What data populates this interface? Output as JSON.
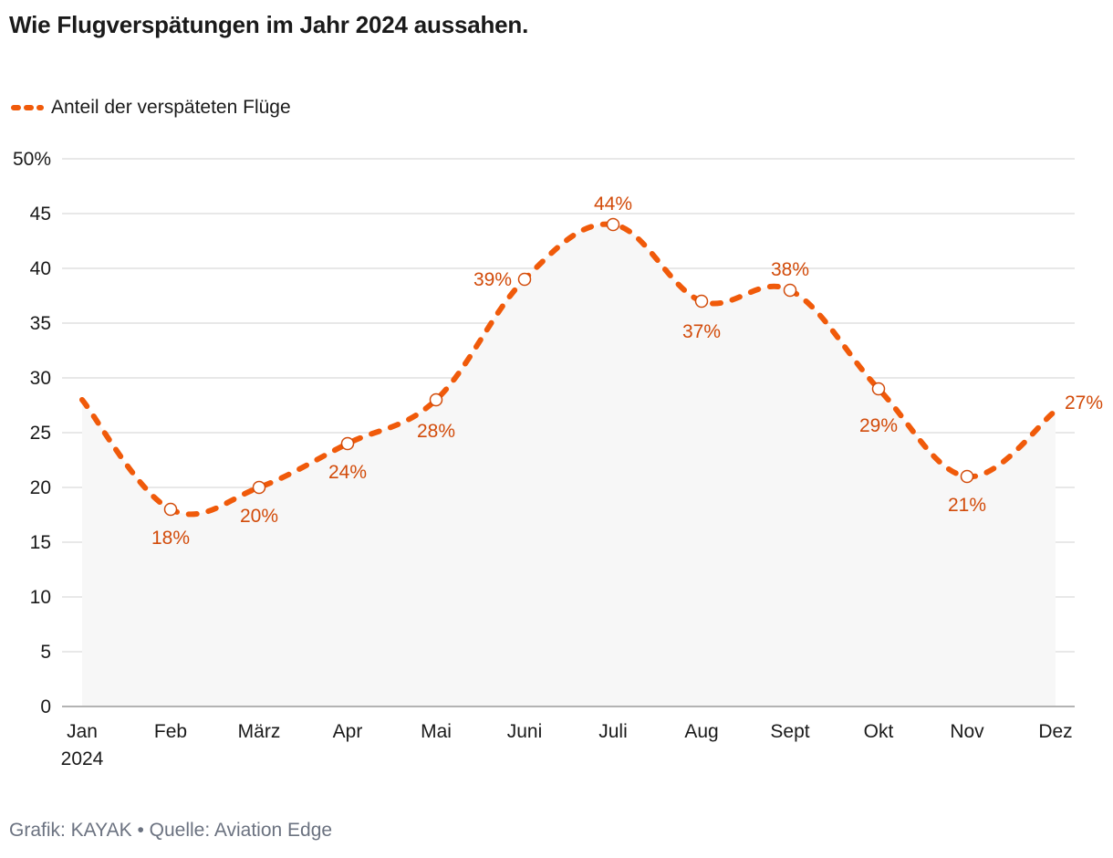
{
  "title": "Wie Flugverspätungen im Jahr 2024 aussahen.",
  "legend": {
    "label": "Anteil der verspäteten Flüge",
    "color": "#f05a0a"
  },
  "colors": {
    "line": "#f05a0a",
    "label": "#d24b0a",
    "area": "#f7f7f7",
    "grid": "#d9d9d9",
    "axis": "#b3b3b3"
  },
  "chart_data": {
    "type": "line",
    "categories": [
      "Jan",
      "Feb",
      "März",
      "Apr",
      "Mai",
      "Juni",
      "Juli",
      "Aug",
      "Sept",
      "Okt",
      "Nov",
      "Dez"
    ],
    "x_sublabels": [
      "2024",
      "",
      "",
      "",
      "",
      "",
      "",
      "",
      "",
      "",
      "",
      ""
    ],
    "series": [
      {
        "name": "Anteil der verspäteten Flüge",
        "values": [
          28,
          18,
          20,
          24,
          28,
          39,
          44,
          37,
          38,
          29,
          21,
          27
        ],
        "labels": [
          "",
          "18%",
          "20%",
          "24%",
          "28%",
          "39%",
          "44%",
          "37%",
          "38%",
          "29%",
          "21%",
          "27%"
        ]
      }
    ],
    "ylim": [
      0,
      50
    ],
    "yticks": [
      0,
      5,
      10,
      15,
      20,
      25,
      30,
      35,
      40,
      45,
      50
    ],
    "ytick_labels": [
      "0",
      "5",
      "10",
      "15",
      "20",
      "25",
      "30",
      "35",
      "40",
      "45",
      "50%"
    ],
    "grid": true,
    "legend_position": "top-left",
    "line_style": "dashed"
  },
  "footer": {
    "credit": "Grafik: KAYAK",
    "separator": "•",
    "source": "Quelle: Aviation Edge"
  }
}
